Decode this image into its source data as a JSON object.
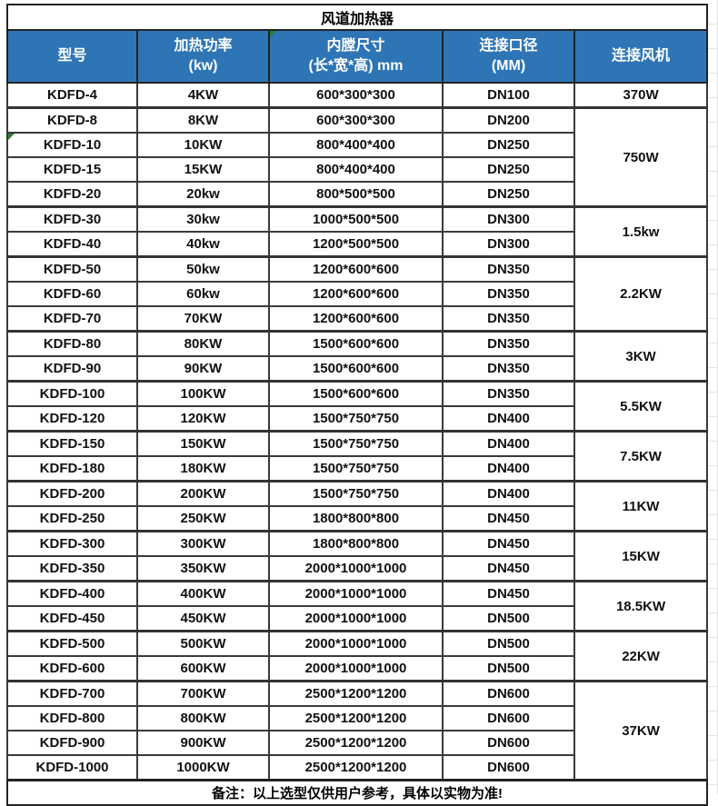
{
  "title": "风道加热器",
  "note": "备注：以上选型仅供用户参考，具体以实物为准!",
  "columns": [
    {
      "label": "型号",
      "marker": false
    },
    {
      "label": "加热功率\n(kw)",
      "marker": false
    },
    {
      "label": "内膛尺寸\n(长*宽*高) mm",
      "marker": true
    },
    {
      "label": "连接口径\n(MM)",
      "marker": false
    },
    {
      "label": "连接风机",
      "marker": false
    }
  ],
  "rows": [
    {
      "model": "KDFD-4",
      "power": "4KW",
      "size": "600*300*300",
      "port": "DN100",
      "marker": false
    },
    {
      "model": "KDFD-8",
      "power": "8KW",
      "size": "600*300*300",
      "port": "DN200",
      "marker": false
    },
    {
      "model": "KDFD-10",
      "power": "10KW",
      "size": "800*400*400",
      "port": "DN250",
      "marker": true
    },
    {
      "model": "KDFD-15",
      "power": "15KW",
      "size": "800*400*400",
      "port": "DN250",
      "marker": false
    },
    {
      "model": "KDFD-20",
      "power": "20kw",
      "size": "800*500*500",
      "port": "DN250",
      "marker": false
    },
    {
      "model": "KDFD-30",
      "power": "30kw",
      "size": "1000*500*500",
      "port": "DN300",
      "marker": false
    },
    {
      "model": "KDFD-40",
      "power": "40kw",
      "size": "1200*500*500",
      "port": "DN300",
      "marker": false
    },
    {
      "model": "KDFD-50",
      "power": "50kw",
      "size": "1200*600*600",
      "port": "DN350",
      "marker": false
    },
    {
      "model": "KDFD-60",
      "power": "60kw",
      "size": "1200*600*600",
      "port": "DN350",
      "marker": false
    },
    {
      "model": "KDFD-70",
      "power": "70KW",
      "size": "1200*600*600",
      "port": "DN350",
      "marker": false
    },
    {
      "model": "KDFD-80",
      "power": "80KW",
      "size": "1500*600*600",
      "port": "DN350",
      "marker": false
    },
    {
      "model": "KDFD-90",
      "power": "90KW",
      "size": "1500*600*600",
      "port": "DN350",
      "marker": false
    },
    {
      "model": "KDFD-100",
      "power": "100KW",
      "size": "1500*600*600",
      "port": "DN350",
      "marker": false
    },
    {
      "model": "KDFD-120",
      "power": "120KW",
      "size": "1500*750*750",
      "port": "DN400",
      "marker": false
    },
    {
      "model": "KDFD-150",
      "power": "150KW",
      "size": "1500*750*750",
      "port": "DN400",
      "marker": false
    },
    {
      "model": "KDFD-180",
      "power": "180KW",
      "size": "1500*750*750",
      "port": "DN400",
      "marker": false
    },
    {
      "model": "KDFD-200",
      "power": "200KW",
      "size": "1500*750*750",
      "port": "DN400",
      "marker": false
    },
    {
      "model": "KDFD-250",
      "power": "250KW",
      "size": "1800*800*800",
      "port": "DN450",
      "marker": false
    },
    {
      "model": "KDFD-300",
      "power": "300KW",
      "size": "1800*800*800",
      "port": "DN450",
      "marker": false
    },
    {
      "model": "KDFD-350",
      "power": "350KW",
      "size": "2000*1000*1000",
      "port": "DN450",
      "marker": false
    },
    {
      "model": "KDFD-400",
      "power": "400KW",
      "size": "2000*1000*1000",
      "port": "DN450",
      "marker": false
    },
    {
      "model": "KDFD-450",
      "power": "450KW",
      "size": "2000*1000*1000",
      "port": "DN500",
      "marker": false
    },
    {
      "model": "KDFD-500",
      "power": "500KW",
      "size": "2000*1000*1000",
      "port": "DN500",
      "marker": false
    },
    {
      "model": "KDFD-600",
      "power": "600KW",
      "size": "2000*1000*1000",
      "port": "DN500",
      "marker": false
    },
    {
      "model": "KDFD-700",
      "power": "700KW",
      "size": "2500*1200*1200",
      "port": "DN600",
      "marker": false
    },
    {
      "model": "KDFD-800",
      "power": "800KW",
      "size": "2500*1200*1200",
      "port": "DN600",
      "marker": false
    },
    {
      "model": "KDFD-900",
      "power": "900KW",
      "size": "2500*1200*1200",
      "port": "DN600",
      "marker": false
    },
    {
      "model": "KDFD-1000",
      "power": "1000KW",
      "size": "2500*1200*1200",
      "port": "DN600",
      "marker": false
    }
  ],
  "fan_groups": [
    {
      "label": "370W",
      "rows": 1
    },
    {
      "label": "750W",
      "rows": 4
    },
    {
      "label": "1.5kw",
      "rows": 2
    },
    {
      "label": "2.2KW",
      "rows": 3
    },
    {
      "label": "3KW",
      "rows": 2
    },
    {
      "label": "5.5KW",
      "rows": 2
    },
    {
      "label": "7.5KW",
      "rows": 2
    },
    {
      "label": "11KW",
      "rows": 2
    },
    {
      "label": "15KW",
      "rows": 2
    },
    {
      "label": "18.5KW",
      "rows": 2
    },
    {
      "label": "22KW",
      "rows": 2
    },
    {
      "label": "37KW",
      "rows": 4
    }
  ],
  "colors": {
    "header_bg": "#2e75b6",
    "header_text": "#ffffff",
    "border_dark": "#3a3a3a",
    "marker_green": "#2e7d32",
    "grid_light": "#e3e3e3"
  }
}
